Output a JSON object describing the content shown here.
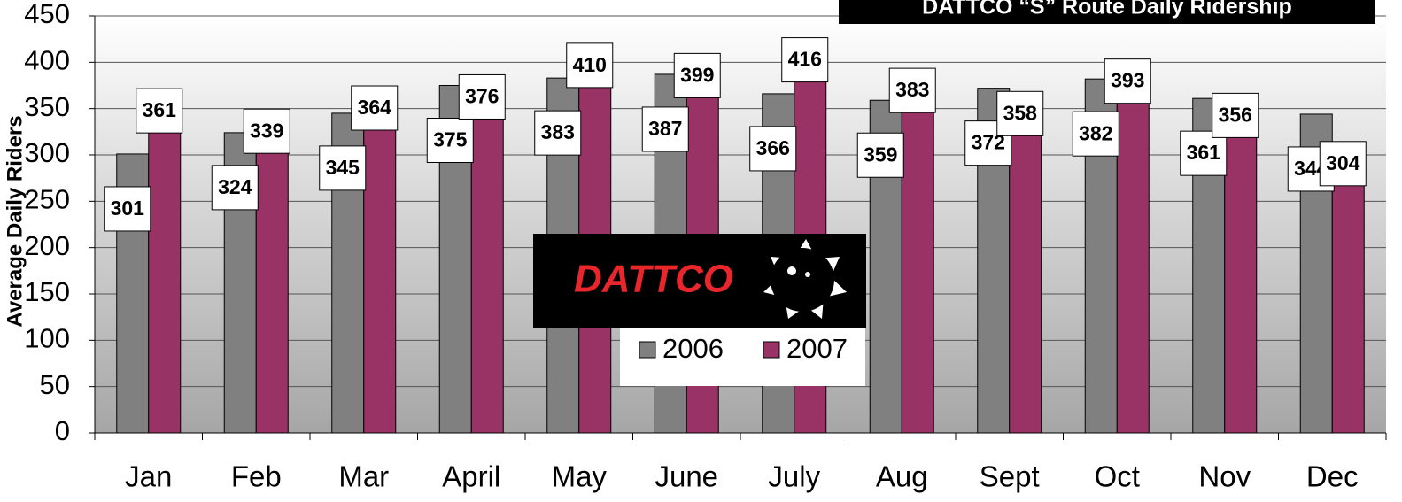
{
  "chart_data": {
    "type": "bar",
    "title": "DATTCO “S” Route Daily Ridership",
    "y_label": "Average Daily Riders",
    "logo": "DATTCO",
    "categories": [
      "Jan",
      "Feb",
      "Mar",
      "April",
      "May",
      "June",
      "July",
      "Aug",
      "Sept",
      "Oct",
      "Nov",
      "Dec"
    ],
    "series": [
      {
        "name": "2006",
        "color": "#808080",
        "values": [
          301,
          324,
          345,
          375,
          383,
          387,
          366,
          359,
          372,
          382,
          361,
          344
        ]
      },
      {
        "name": "2007",
        "color": "#993366",
        "values": [
          361,
          339,
          364,
          376,
          410,
          399,
          416,
          383,
          358,
          393,
          356,
          304
        ]
      }
    ],
    "ylim": [
      0,
      450
    ],
    "yticks": [
      0,
      50,
      100,
      150,
      200,
      250,
      300,
      350,
      400,
      450
    ],
    "grid": true
  }
}
